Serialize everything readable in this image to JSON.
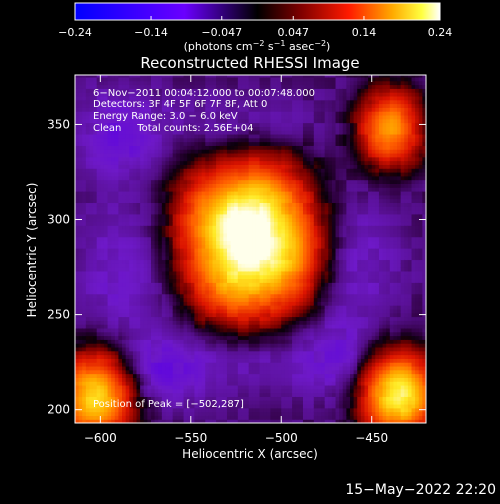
{
  "chart_data": {
    "type": "heatmap",
    "title": "Reconstructed RHESSI Image",
    "xlabel": "Heliocentric X (arcsec)",
    "ylabel": "Heliocentric Y (arcsec)",
    "xlim": [
      -614,
      -420
    ],
    "ylim": [
      193,
      376
    ],
    "x_ticks": [
      -600,
      -550,
      -500,
      -450
    ],
    "y_ticks": [
      200,
      250,
      300,
      350
    ],
    "x_tick_labels": [
      "−600",
      "−550",
      "−500",
      "−450"
    ],
    "y_tick_labels": [
      "200",
      "250",
      "300",
      "350"
    ],
    "colorbar": {
      "range": [
        -0.24,
        0.24
      ],
      "ticks": [
        -0.24,
        -0.14,
        -0.047,
        0.047,
        0.14,
        0.24
      ],
      "tick_labels": [
        "−0.24",
        "−0.14",
        "−0.047",
        "0.047",
        "0.14",
        "0.24"
      ],
      "unit_base": "(photons cm",
      "unit_exp1": "−2",
      "unit_mid": " s",
      "unit_exp2": "−1",
      "unit_mid2": " asec",
      "unit_exp3": "−2",
      "unit_end": ")"
    },
    "annotations": [
      "6−Nov−2011 00:04:12.000 to 00:07:48.000",
      "Detectors: 3F 4F 5F 6F 7F 8F, Att 0",
      "Energy Range: 3.0 − 6.0 keV",
      "Clean     Total counts: 2.56E+04"
    ],
    "peak_label": "Position of Peak = [−502,287]",
    "peak": {
      "x": -502,
      "y": 287
    },
    "grid": false,
    "sources": [
      {
        "x": -518,
        "y": 289,
        "sx": 24,
        "sy": 28,
        "amp": 0.26
      },
      {
        "x": -524,
        "y": 301,
        "sx": 12,
        "sy": 10,
        "amp": 0.04
      },
      {
        "x": -494,
        "y": 282,
        "sx": 13,
        "sy": 15,
        "amp": 0.05
      },
      {
        "x": -545,
        "y": 305,
        "sx": 11,
        "sy": 13,
        "amp": 0.03
      },
      {
        "x": -506,
        "y": 315,
        "sx": 12,
        "sy": 10,
        "amp": 0.03
      },
      {
        "x": -530,
        "y": 265,
        "sx": 12,
        "sy": 12,
        "amp": 0.03
      },
      {
        "x": -603,
        "y": 207,
        "sx": 14,
        "sy": 16,
        "amp": 0.21
      },
      {
        "x": -435,
        "y": 208,
        "sx": 14,
        "sy": 15,
        "amp": 0.24
      },
      {
        "x": -440,
        "y": 348,
        "sx": 12,
        "sy": 14,
        "amp": 0.17
      },
      {
        "x": -585,
        "y": 272,
        "sx": 20,
        "sy": 26,
        "amp": -0.04
      },
      {
        "x": -460,
        "y": 278,
        "sx": 18,
        "sy": 26,
        "amp": -0.04
      },
      {
        "x": -520,
        "y": 228,
        "sx": 32,
        "sy": 14,
        "amp": -0.04
      },
      {
        "x": -522,
        "y": 350,
        "sx": 32,
        "sy": 12,
        "amp": -0.035
      },
      {
        "x": -590,
        "y": 345,
        "sx": 16,
        "sy": 16,
        "amp": -0.05
      },
      {
        "x": -565,
        "y": 220,
        "sx": 14,
        "sy": 12,
        "amp": -0.045
      },
      {
        "x": -470,
        "y": 228,
        "sx": 14,
        "sy": 14,
        "amp": -0.035
      }
    ],
    "base_level": -0.024
  },
  "footer": {
    "timestamp": "15−May−2022 22:20"
  }
}
